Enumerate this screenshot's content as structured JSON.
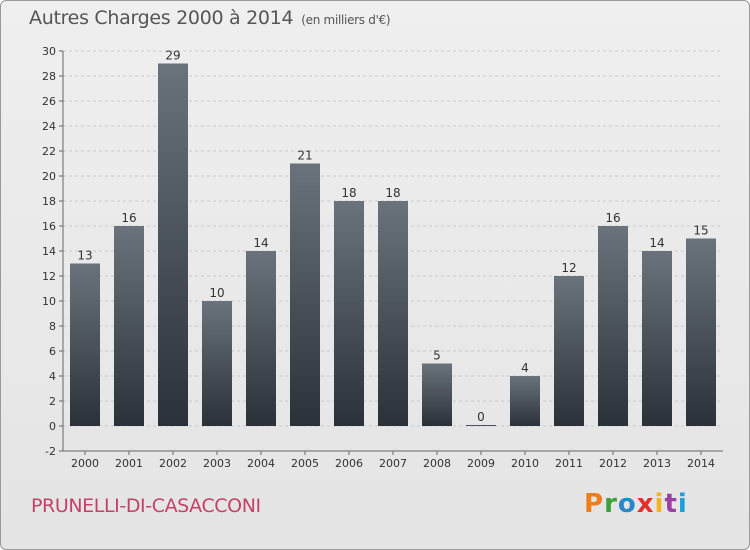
{
  "header": {
    "title": "Autres Charges 2000 à 2014",
    "subtitle": "(en milliers d'€)"
  },
  "footer": {
    "town": "PRUNELLI-DI-CASACCONI",
    "logo": [
      "P",
      "r",
      "o",
      "x",
      "i",
      "t",
      "i"
    ]
  },
  "colors": {
    "bar_top": "#6a737b",
    "bar_bottom": "#2b3138",
    "logo": [
      "#ee7e1a",
      "#3aa13a",
      "#2d86c7",
      "#e2302a",
      "#f2b31c",
      "#9b3fa3",
      "#1ca1d8"
    ]
  },
  "chart_data": {
    "type": "bar",
    "title": "Autres Charges 2000 à 2014",
    "subtitle": "(en milliers d'€)",
    "categories": [
      "2000",
      "2001",
      "2002",
      "2003",
      "2004",
      "2005",
      "2006",
      "2007",
      "2008",
      "2009",
      "2010",
      "2011",
      "2012",
      "2013",
      "2014"
    ],
    "values": [
      13,
      16,
      29,
      10,
      14,
      21,
      18,
      18,
      5,
      0,
      4,
      12,
      16,
      14,
      15
    ],
    "ylim": [
      -2,
      30
    ],
    "yticks": [
      -2,
      0,
      2,
      4,
      6,
      8,
      10,
      12,
      14,
      16,
      18,
      20,
      22,
      24,
      26,
      28,
      30
    ],
    "grid": "horizontal dashed"
  }
}
